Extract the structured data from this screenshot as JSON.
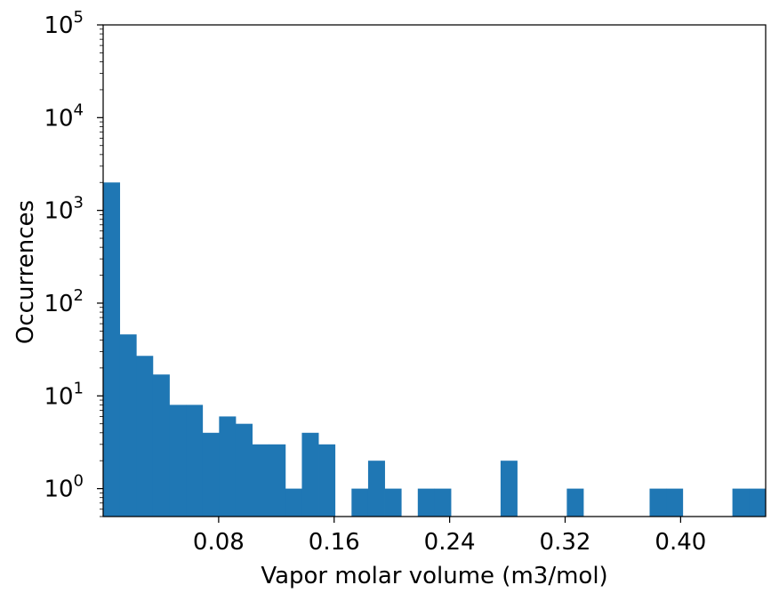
{
  "chart_data": {
    "type": "bar",
    "xlabel": "Vapor molar volume (m3/mol)",
    "ylabel": "Occurrences",
    "yscale": "log",
    "xlim": [
      0.0,
      0.4589
    ],
    "ylim": [
      0.5,
      100000
    ],
    "grid": false,
    "bar_color": "#1f77b4",
    "bin_width": 0.01147,
    "bins_start": 0.0,
    "counts": [
      2000,
      46,
      27,
      17,
      8,
      8,
      4,
      6,
      5,
      3,
      3,
      1,
      4,
      3,
      0,
      1,
      2,
      1,
      0,
      1,
      1,
      0,
      0,
      0,
      2,
      0,
      0,
      0,
      1,
      0,
      0,
      0,
      0,
      1,
      1,
      0,
      0,
      0,
      1,
      1
    ],
    "xticks": [
      {
        "value": 0.08,
        "label": "0.08"
      },
      {
        "value": 0.16,
        "label": "0.16"
      },
      {
        "value": 0.24,
        "label": "0.24"
      },
      {
        "value": 0.32,
        "label": "0.32"
      },
      {
        "value": 0.4,
        "label": "0.40"
      }
    ],
    "yticks": [
      {
        "value": 1,
        "base": "10",
        "exp": "0"
      },
      {
        "value": 10,
        "base": "10",
        "exp": "1"
      },
      {
        "value": 100,
        "base": "10",
        "exp": "2"
      },
      {
        "value": 1000,
        "base": "10",
        "exp": "3"
      },
      {
        "value": 10000,
        "base": "10",
        "exp": "4"
      },
      {
        "value": 100000,
        "base": "10",
        "exp": "5"
      }
    ]
  }
}
